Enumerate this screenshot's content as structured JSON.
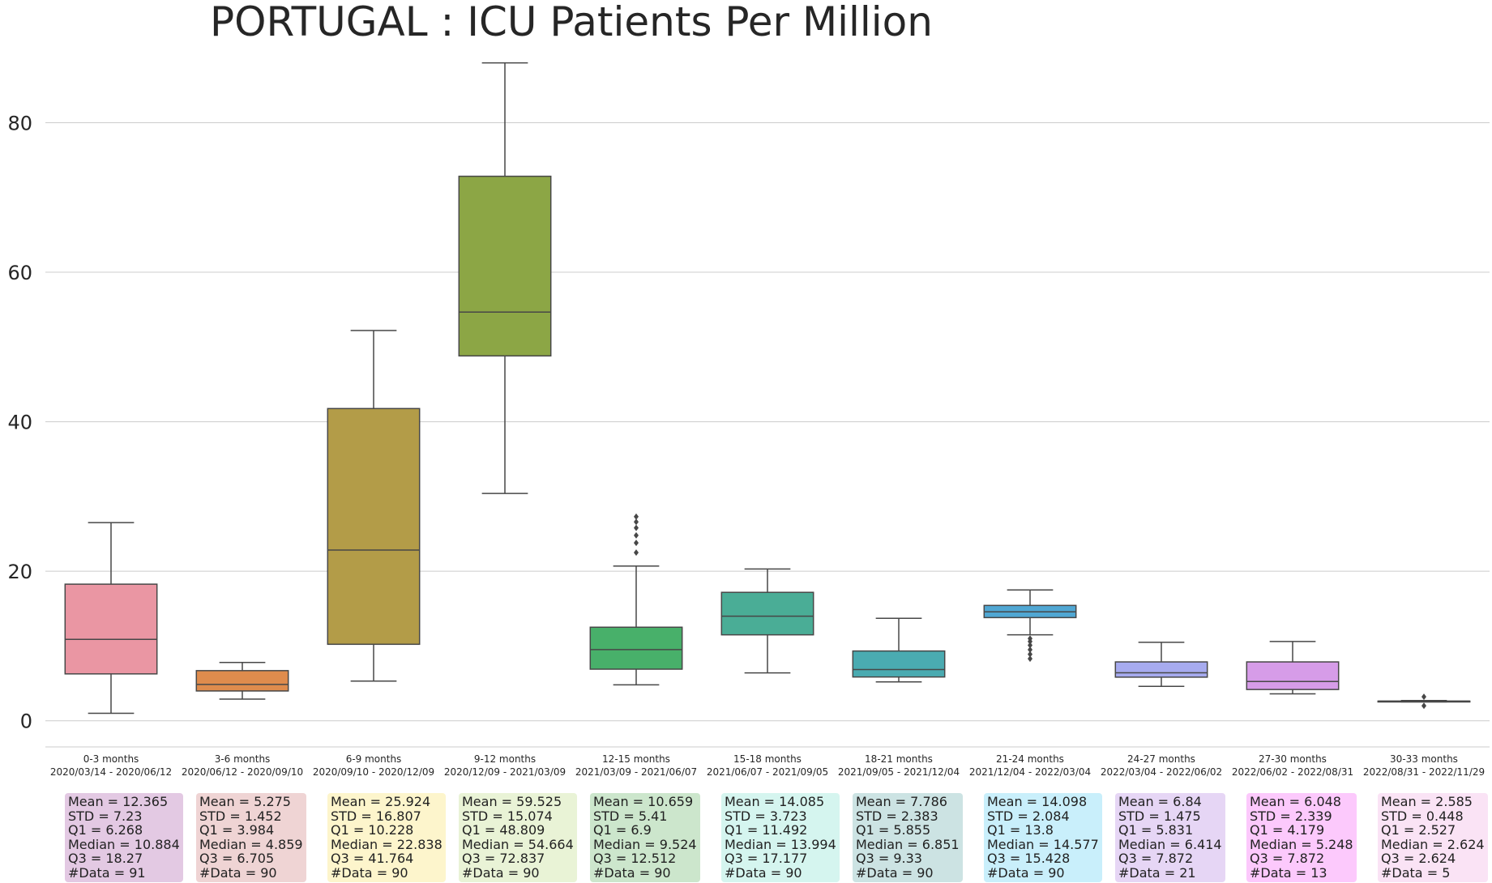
{
  "chart_data": {
    "type": "box",
    "title": "PORTUGAL : ICU Patients Per Million",
    "xlabel": "",
    "ylabel": "",
    "ylim": [
      -3.5,
      91
    ],
    "yticks": [
      0,
      20,
      40,
      60,
      80
    ],
    "grid": "horizontal",
    "boxes": [
      {
        "label": "0-3 months",
        "range": "2020/03/14 - 2020/06/12",
        "color": "#ea96a3",
        "whisker_low": 1.0,
        "q1": 6.268,
        "median": 10.884,
        "q3": 18.27,
        "whisker_high": 26.5,
        "outliers": [],
        "stats": [
          "Mean = 12.365",
          "STD = 7.23",
          "Q1 = 6.268",
          "Median = 10.884",
          "Q3 = 18.27",
          "#Data = 91"
        ],
        "stats_bg": "#e3c9e3"
      },
      {
        "label": "3-6 months",
        "range": "2020/06/12 - 2020/09/10",
        "color": "#df8c4d",
        "whisker_low": 2.9,
        "q1": 3.984,
        "median": 4.859,
        "q3": 6.705,
        "whisker_high": 7.8,
        "outliers": [],
        "stats": [
          "Mean = 5.275",
          "STD = 1.452",
          "Q1 = 3.984",
          "Median = 4.859",
          "Q3 = 6.705",
          "#Data = 90"
        ],
        "stats_bg": "#efd4d4"
      },
      {
        "label": "6-9 months",
        "range": "2020/09/10 - 2020/12/09",
        "color": "#b39c48",
        "whisker_low": 5.3,
        "q1": 10.228,
        "median": 22.838,
        "q3": 41.764,
        "whisker_high": 52.2,
        "outliers": [],
        "stats": [
          "Mean = 25.924",
          "STD = 16.807",
          "Q1 = 10.228",
          "Median = 22.838",
          "Q3 = 41.764",
          "#Data = 90"
        ],
        "stats_bg": "#fdf5cc"
      },
      {
        "label": "9-12 months",
        "range": "2020/12/09 - 2021/03/09",
        "color": "#8ca645",
        "whisker_low": 30.4,
        "q1": 48.809,
        "median": 54.664,
        "q3": 72.837,
        "whisker_high": 88.0,
        "outliers": [],
        "stats": [
          "Mean = 59.525",
          "STD = 15.074",
          "Q1 = 48.809",
          "Median = 54.664",
          "Q3 = 72.837",
          "#Data = 90"
        ],
        "stats_bg": "#e9f3d6"
      },
      {
        "label": "12-15 months",
        "range": "2021/03/09 - 2021/06/07",
        "color": "#48b06a",
        "whisker_low": 4.8,
        "q1": 6.9,
        "median": 9.524,
        "q3": 12.512,
        "whisker_high": 20.7,
        "outliers": [
          22.5,
          23.8,
          24.8,
          25.8,
          26.6,
          27.3
        ],
        "stats": [
          "Mean = 10.659",
          "STD = 5.41",
          "Q1 = 6.9",
          "Median = 9.524",
          "Q3 = 12.512",
          "#Data = 90"
        ],
        "stats_bg": "#cce6cc"
      },
      {
        "label": "15-18 months",
        "range": "2021/06/07 - 2021/09/05",
        "color": "#4aad96",
        "whisker_low": 6.4,
        "q1": 11.492,
        "median": 13.994,
        "q3": 17.177,
        "whisker_high": 20.3,
        "outliers": [],
        "stats": [
          "Mean = 14.085",
          "STD = 3.723",
          "Q1 = 11.492",
          "Median = 13.994",
          "Q3 = 17.177",
          "#Data = 90"
        ],
        "stats_bg": "#d5f5ef"
      },
      {
        "label": "18-21 months",
        "range": "2021/09/05 - 2021/12/04",
        "color": "#4aabb1",
        "whisker_low": 5.2,
        "q1": 5.855,
        "median": 6.851,
        "q3": 9.33,
        "whisker_high": 13.7,
        "outliers": [],
        "stats": [
          "Mean = 7.786",
          "STD = 2.383",
          "Q1 = 5.855",
          "Median = 6.851",
          "Q3 = 9.33",
          "#Data = 90"
        ],
        "stats_bg": "#cce3e3"
      },
      {
        "label": "21-24 months",
        "range": "2021/12/04 - 2022/03/04",
        "color": "#50a7d3",
        "whisker_low": 11.5,
        "q1": 13.8,
        "median": 14.577,
        "q3": 15.428,
        "whisker_high": 17.5,
        "outliers": [
          8.3,
          8.9,
          9.5,
          10.1,
          10.6,
          11.0
        ],
        "stats": [
          "Mean = 14.098",
          "STD = 2.084",
          "Q1 = 13.8",
          "Median = 14.577",
          "Q3 = 15.428",
          "#Data = 90"
        ],
        "stats_bg": "#c9effb"
      },
      {
        "label": "24-27 months",
        "range": "2022/03/04 - 2022/06/02",
        "color": "#a7abef",
        "whisker_low": 4.6,
        "q1": 5.831,
        "median": 6.414,
        "q3": 7.872,
        "whisker_high": 10.5,
        "outliers": [],
        "stats": [
          "Mean = 6.84",
          "STD = 1.475",
          "Q1 = 5.831",
          "Median = 6.414",
          "Q3 = 7.872",
          "#Data = 21"
        ],
        "stats_bg": "#e6d6f5"
      },
      {
        "label": "27-30 months",
        "range": "2022/06/02 - 2022/08/31",
        "color": "#d69ce8",
        "whisker_low": 3.6,
        "q1": 4.179,
        "median": 5.248,
        "q3": 7.872,
        "whisker_high": 10.6,
        "outliers": [],
        "stats": [
          "Mean = 6.048",
          "STD = 2.339",
          "Q1 = 4.179",
          "Median = 5.248",
          "Q3 = 7.872",
          "#Data = 13"
        ],
        "stats_bg": "#fcc9fc"
      },
      {
        "label": "30-33 months",
        "range": "2022/08/31 - 2022/11/29",
        "color": "#ee9fd4",
        "whisker_low": 2.527,
        "q1": 2.527,
        "median": 2.624,
        "q3": 2.624,
        "whisker_high": 2.7,
        "outliers": [
          2.0,
          3.2
        ],
        "stats": [
          "Mean = 2.585",
          "STD = 0.448",
          "Q1 = 2.527",
          "Median = 2.624",
          "Q3 = 2.624",
          "#Data = 5"
        ],
        "stats_bg": "#fae3f5"
      }
    ]
  }
}
